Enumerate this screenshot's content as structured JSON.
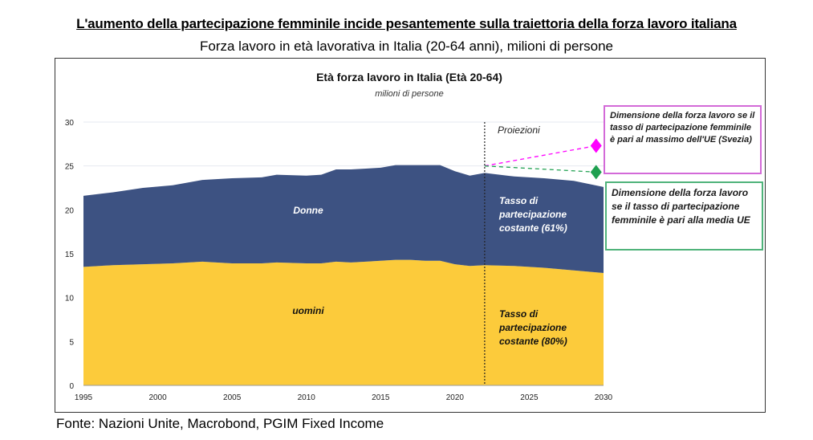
{
  "header": {
    "title": "L'aumento della partecipazione femminile incide pesantemente sulla traiettoria della forza lavoro italiana",
    "subtitle": "Forza lavoro in età lavorativa in Italia (20-64 anni), milioni di persone"
  },
  "source": "Fonte: Nazioni Unite, Macrobond, PGIM Fixed Income",
  "chart_data": {
    "type": "area",
    "title": "Età forza lavoro in Italia  (Età 20-64)",
    "subtitle": "milioni di persone",
    "xlabel": "",
    "ylabel": "",
    "xlim": [
      1995,
      2030
    ],
    "ylim": [
      0,
      30
    ],
    "x_ticks": [
      "1995",
      "2000",
      "2005",
      "2010",
      "2015",
      "2020",
      "2025",
      "2030"
    ],
    "y_ticks": [
      "0",
      "5",
      "10",
      "15",
      "20",
      "25",
      "30"
    ],
    "x": [
      1995,
      1997,
      1999,
      2001,
      2003,
      2005,
      2007,
      2008,
      2010,
      2011,
      2012,
      2013,
      2014,
      2015,
      2016,
      2017,
      2018,
      2019,
      2020,
      2021,
      2022,
      2024,
      2026,
      2028,
      2030
    ],
    "series": [
      {
        "name": "uomini",
        "color": "#fccb3b",
        "values": [
          13.5,
          13.7,
          13.8,
          13.9,
          14.1,
          13.9,
          13.9,
          14.0,
          13.9,
          13.9,
          14.1,
          14.0,
          14.1,
          14.2,
          14.3,
          14.3,
          14.2,
          14.2,
          13.8,
          13.6,
          13.7,
          13.6,
          13.4,
          13.1,
          12.8
        ]
      },
      {
        "name": "Donne",
        "color": "#3d5282",
        "values": [
          8.1,
          8.3,
          8.7,
          8.9,
          9.3,
          9.7,
          9.8,
          10.0,
          10.0,
          10.1,
          10.5,
          10.6,
          10.6,
          10.6,
          10.8,
          10.8,
          10.9,
          10.9,
          10.6,
          10.3,
          10.5,
          10.2,
          10.2,
          10.2,
          9.8
        ]
      }
    ],
    "stacked": true,
    "labels": {
      "donne": "Donne",
      "uomini": "uomini",
      "proiezioni": "Proiezioni",
      "donne_proj": [
        "Tasso di",
        "partecipazione",
        "costante (61%)"
      ],
      "uomini_proj": [
        "Tasso di",
        "partecipazione",
        "costante (80%)"
      ]
    },
    "projection_start": 2022,
    "scenarios": [
      {
        "name": "max_ue",
        "year": 2029.5,
        "value": 27.3,
        "color": "#ff00ff",
        "label": "Dimensione della forza lavoro se il tasso di partecipazione femminile è pari al massimo dell'UE (Svezia)"
      },
      {
        "name": "media_ue",
        "year": 2029.5,
        "value": 24.3,
        "color": "#1fa050",
        "label": "Dimensione della forza lavoro se il tasso di partecipazione femminile è pari alla media UE"
      }
    ],
    "scenario_origin": {
      "year": 2022,
      "value": 25.0
    },
    "grid": true
  }
}
